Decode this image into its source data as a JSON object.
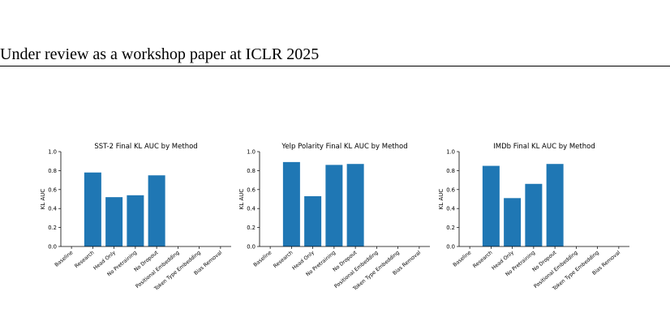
{
  "header": {
    "text": "Under review as a workshop paper at ICLR 2025"
  },
  "chart_data": [
    {
      "type": "bar",
      "title": "SST-2 Final KL AUC by Method",
      "ylabel": "KL AUC",
      "xlabel": "",
      "categories": [
        "Baseline",
        "Research",
        "Head Only",
        "No Pretraining",
        "No Dropout",
        "Positional Embedding",
        "Token Type Embedding",
        "Bias Removal"
      ],
      "values": [
        0,
        0.78,
        0.52,
        0.54,
        0.75,
        0,
        0,
        0
      ],
      "ylim": [
        0,
        1.0
      ],
      "yticks": [
        "0.0",
        "0.2",
        "0.4",
        "0.6",
        "0.8",
        "1.0"
      ],
      "color": "#1f77b4"
    },
    {
      "type": "bar",
      "title": "Yelp Polarity Final KL AUC by Method",
      "ylabel": "KL AUC",
      "xlabel": "",
      "categories": [
        "Baseline",
        "Research",
        "Head Only",
        "No Pretraining",
        "No Dropout",
        "Positional Embedding",
        "Token Type Embedding",
        "Bias Removal"
      ],
      "values": [
        0,
        0.89,
        0.53,
        0.86,
        0.87,
        0,
        0,
        0
      ],
      "ylim": [
        0,
        1.0
      ],
      "yticks": [
        "0.0",
        "0.2",
        "0.4",
        "0.6",
        "0.8",
        "1.0"
      ],
      "color": "#1f77b4"
    },
    {
      "type": "bar",
      "title": "IMDb Final KL AUC by Method",
      "ylabel": "KL AUC",
      "xlabel": "",
      "categories": [
        "Baseline",
        "Research",
        "Head Only",
        "No Pretraining",
        "No Dropout",
        "Positional Embedding",
        "Token Type Embedding",
        "Bias Removal"
      ],
      "values": [
        0,
        0.85,
        0.51,
        0.66,
        0.87,
        0,
        0,
        0
      ],
      "ylim": [
        0,
        1.0
      ],
      "yticks": [
        "0.0",
        "0.2",
        "0.4",
        "0.6",
        "0.8",
        "1.0"
      ],
      "color": "#1f77b4"
    }
  ]
}
